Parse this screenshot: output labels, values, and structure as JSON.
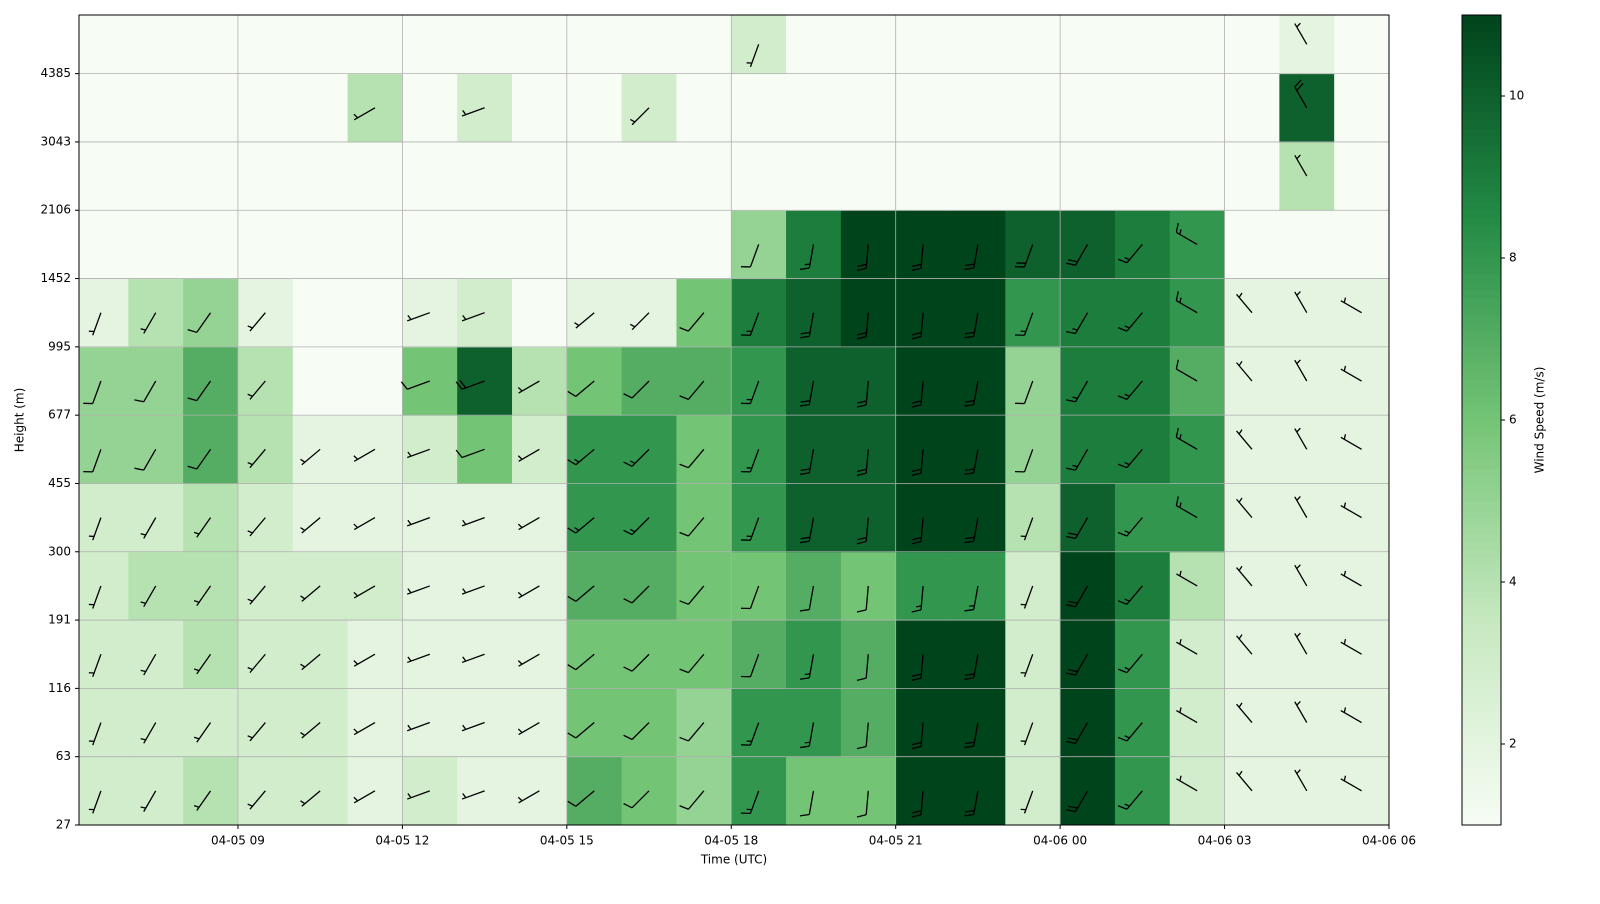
{
  "chart_data": {
    "type": "heatmap",
    "x_label": "Time (UTC)",
    "y_label": "Height (m)",
    "colorbar_label": "Wind Speed (m/s)",
    "xlim": [
      6.1,
      30
    ],
    "xticks": [
      {
        "value": 9,
        "label": "04-05 09"
      },
      {
        "value": 12,
        "label": "04-05 12"
      },
      {
        "value": 15,
        "label": "04-05 15"
      },
      {
        "value": 18,
        "label": "04-05 18"
      },
      {
        "value": 21,
        "label": "04-05 21"
      },
      {
        "value": 24,
        "label": "04-06 00"
      },
      {
        "value": 27,
        "label": "04-06 03"
      },
      {
        "value": 30,
        "label": "04-06 06"
      }
    ],
    "ylim": [
      27,
      6000
    ],
    "y_scale": "tick-spaced",
    "yticks": [
      27,
      63,
      116,
      191,
      300,
      455,
      677,
      995,
      1452,
      2106,
      3043,
      4385
    ],
    "grid": true,
    "x": [
      6.5,
      7.5,
      8.5,
      9.5,
      10.5,
      11.5,
      12.5,
      13.5,
      14.5,
      15.5,
      16.5,
      17.5,
      18.5,
      19.5,
      20.5,
      21.5,
      22.5,
      23.5,
      24.5,
      25.5,
      26.5,
      27.5,
      28.5,
      29.5
    ],
    "y_bins": [
      27,
      63,
      116,
      191,
      300,
      455,
      677,
      995,
      1452,
      2106,
      3043,
      4385,
      6000
    ],
    "values": [
      [
        3,
        3,
        4,
        3,
        3,
        2,
        3,
        2,
        2,
        7,
        6,
        5,
        8,
        6,
        6,
        11,
        11,
        3,
        11,
        8,
        3,
        2,
        2,
        2
      ],
      [
        3,
        3,
        3,
        3,
        3,
        2,
        2,
        2,
        2,
        6,
        6,
        5,
        8,
        8,
        7,
        11,
        11,
        3,
        11,
        8,
        3,
        2,
        2,
        2
      ],
      [
        3,
        3,
        4,
        3,
        3,
        2,
        2,
        2,
        2,
        6,
        6,
        6,
        7,
        8,
        7,
        11,
        11,
        3,
        11,
        8,
        3,
        2,
        2,
        2
      ],
      [
        3,
        4,
        4,
        3,
        3,
        3,
        2,
        2,
        2,
        7,
        7,
        6,
        6,
        7,
        6,
        8,
        8,
        3,
        11,
        9,
        4,
        2,
        2,
        2
      ],
      [
        3,
        3,
        4,
        3,
        2,
        2,
        2,
        2,
        2,
        8,
        8,
        6,
        8,
        10,
        10,
        11,
        11,
        4,
        10,
        8,
        8,
        2,
        2,
        2
      ],
      [
        5,
        5,
        7,
        4,
        2,
        2,
        3,
        6,
        3,
        8,
        8,
        6,
        8,
        10,
        10,
        11,
        11,
        5,
        9,
        9,
        8,
        2,
        2,
        2
      ],
      [
        5,
        5,
        7,
        4,
        1,
        1,
        6,
        10,
        4,
        6,
        7,
        7,
        8,
        10,
        10,
        11,
        11,
        5,
        9,
        9,
        7,
        2,
        2,
        2
      ],
      [
        2,
        4,
        5,
        2,
        1,
        1,
        2,
        3,
        1,
        2,
        2,
        6,
        9,
        10,
        11,
        11,
        11,
        8,
        9,
        9,
        8,
        2,
        2,
        2
      ],
      [
        1,
        1,
        1,
        1,
        1,
        1,
        1,
        1,
        1,
        1,
        1,
        1,
        5,
        9,
        11,
        11,
        11,
        10,
        10,
        9,
        8,
        1,
        1,
        1
      ],
      [
        1,
        1,
        1,
        1,
        1,
        1,
        1,
        1,
        1,
        1,
        1,
        1,
        1,
        1,
        1,
        1,
        1,
        1,
        1,
        1,
        1,
        1,
        4,
        1
      ],
      [
        1,
        1,
        1,
        1,
        1,
        4,
        1,
        3,
        1,
        1,
        3,
        1,
        1,
        1,
        1,
        1,
        1,
        1,
        1,
        1,
        1,
        1,
        10,
        1
      ],
      [
        1,
        1,
        1,
        1,
        1,
        1,
        1,
        1,
        1,
        1,
        1,
        1,
        3,
        1,
        1,
        1,
        1,
        1,
        1,
        1,
        1,
        1,
        2,
        1
      ]
    ],
    "barb_direction": [
      200,
      210,
      215,
      220,
      230,
      240,
      250,
      250,
      240,
      230,
      225,
      220,
      200,
      190,
      185,
      185,
      190,
      200,
      210,
      220,
      300,
      320,
      330,
      300
    ],
    "colorbar_lim": [
      1,
      11
    ],
    "colorbar_ticks": [
      2,
      4,
      6,
      8,
      10
    ],
    "colormap": [
      "#f7fcf5",
      "#c7e9c0",
      "#74c476",
      "#238b45",
      "#00441b"
    ],
    "barb_color": "#000000"
  }
}
